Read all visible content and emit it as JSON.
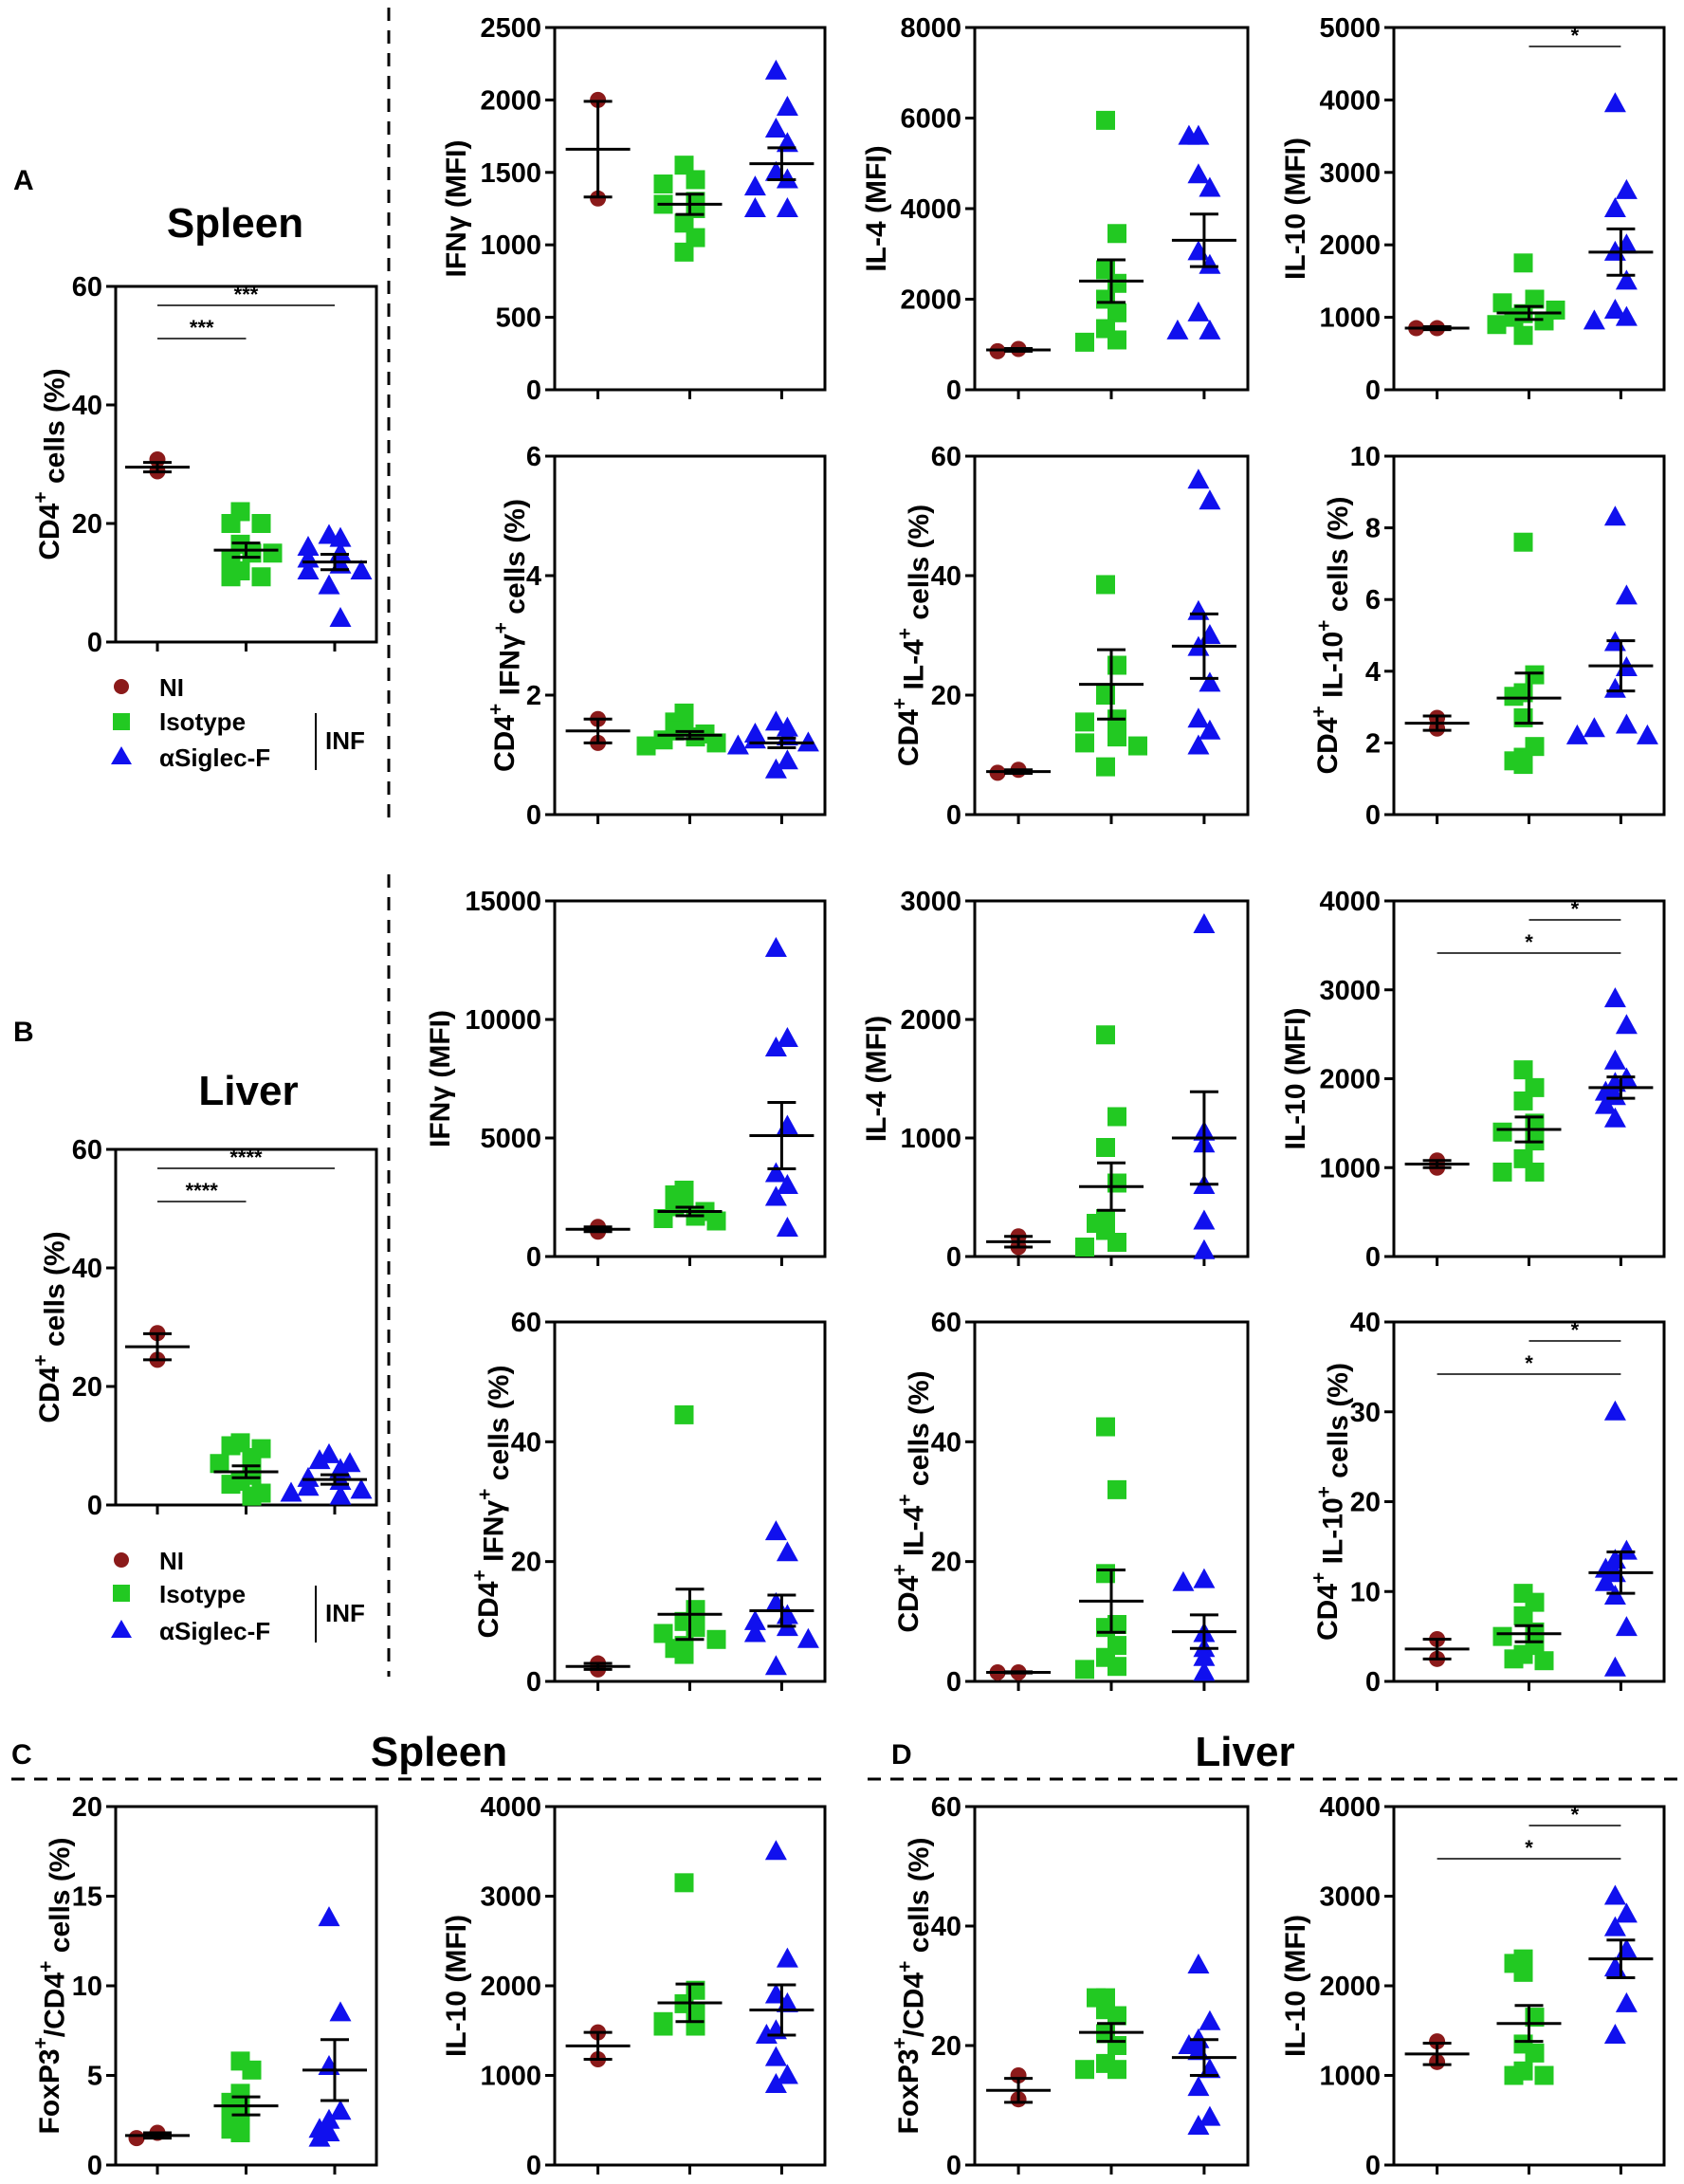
{
  "panel_labels": {
    "a": "A",
    "b": "B",
    "c": "C",
    "d": "D"
  },
  "section_titles": {
    "a": "Spleen",
    "b": "Liver",
    "c": "Spleen",
    "d": "Liver"
  },
  "legend": {
    "ni": "NI",
    "isotype": "Isotype",
    "siglec": "αSiglec-F",
    "group": "INF"
  },
  "colors": {
    "ni": "#8b1a1a",
    "isotype": "#22c922",
    "siglec": "#1010ee",
    "axis": "#000000"
  },
  "chart_data": [
    {
      "id": "a_cd4",
      "type": "scatter",
      "ylabel": "CD4+ cells (%)",
      "ylim": [
        0,
        60
      ],
      "ticks": [
        0,
        20,
        40,
        60
      ],
      "groups": [
        {
          "name": "NI",
          "values": [
            28.8,
            30.8
          ],
          "mean": 29.5,
          "sem": 0.8
        },
        {
          "name": "Isotype",
          "values": [
            22,
            20,
            20,
            15,
            16.5,
            14,
            12,
            11,
            11,
            15
          ],
          "mean": 15.5,
          "sem": 1.2
        },
        {
          "name": "αSiglec-F",
          "values": [
            18,
            17.5,
            16,
            15,
            14,
            13,
            12,
            12,
            9.5,
            4
          ],
          "mean": 13.5,
          "sem": 1.3
        }
      ],
      "sig": [
        {
          "from": 0,
          "to": 1,
          "text": "***"
        },
        {
          "from": 0,
          "to": 2,
          "text": "***"
        }
      ]
    },
    {
      "id": "a_ifn_mfi",
      "type": "scatter",
      "ylabel": "IFNγ (MFI)",
      "ylim": [
        0,
        2500
      ],
      "ticks": [
        0,
        500,
        1000,
        1500,
        2000,
        2500
      ],
      "groups": [
        {
          "name": "NI",
          "values": [
            2000,
            1320
          ],
          "mean": 1660,
          "sem": 330
        },
        {
          "name": "Isotype",
          "values": [
            1550,
            1450,
            1420,
            1300,
            1280,
            1250,
            1150,
            1050,
            950
          ],
          "mean": 1280,
          "sem": 70
        },
        {
          "name": "αSiglec-F",
          "values": [
            2200,
            1950,
            1800,
            1700,
            1500,
            1450,
            1400,
            1250,
            1250
          ],
          "mean": 1560,
          "sem": 110
        }
      ],
      "sig": []
    },
    {
      "id": "a_il4_mfi",
      "type": "scatter",
      "ylabel": "IL-4 (MFI)",
      "ylim": [
        0,
        8000
      ],
      "ticks": [
        0,
        2000,
        4000,
        6000,
        8000
      ],
      "groups": [
        {
          "name": "NI",
          "values": [
            900,
            850
          ],
          "mean": 880,
          "sem": 30
        },
        {
          "name": "Isotype",
          "values": [
            5950,
            3450,
            2650,
            2350,
            2000,
            1700,
            1350,
            1100,
            1050
          ],
          "mean": 2400,
          "sem": 470
        },
        {
          "name": "αSiglec-F",
          "values": [
            5600,
            5600,
            4750,
            4450,
            3050,
            2750,
            1700,
            1300,
            1300
          ],
          "mean": 3300,
          "sem": 580
        }
      ],
      "sig": []
    },
    {
      "id": "a_il10_mfi",
      "type": "scatter",
      "ylabel": "IL-10 (MFI)",
      "ylim": [
        0,
        5000
      ],
      "ticks": [
        0,
        1000,
        2000,
        3000,
        4000,
        5000
      ],
      "groups": [
        {
          "name": "NI",
          "values": [
            850,
            850
          ],
          "mean": 850,
          "sem": 20
        },
        {
          "name": "Isotype",
          "values": [
            1750,
            1250,
            1200,
            1100,
            1050,
            1000,
            950,
            900,
            750
          ],
          "mean": 1060,
          "sem": 90
        },
        {
          "name": "αSiglec-F",
          "values": [
            3950,
            2750,
            2500,
            2000,
            1900,
            1500,
            1100,
            1000,
            950
          ],
          "mean": 1900,
          "sem": 320
        }
      ],
      "sig": [
        {
          "from": 1,
          "to": 2,
          "text": "*"
        }
      ]
    },
    {
      "id": "a_ifn_pct",
      "type": "scatter",
      "ylabel": "CD4+ IFNγ+ cells (%)",
      "ylim": [
        0,
        6
      ],
      "ticks": [
        0,
        2,
        4,
        6
      ],
      "groups": [
        {
          "name": "NI",
          "values": [
            1.6,
            1.2
          ],
          "mean": 1.4,
          "sem": 0.2
        },
        {
          "name": "Isotype",
          "values": [
            1.7,
            1.55,
            1.5,
            1.4,
            1.35,
            1.3,
            1.25,
            1.2,
            1.15
          ],
          "mean": 1.33,
          "sem": 0.06
        },
        {
          "name": "αSiglec-F",
          "values": [
            1.55,
            1.45,
            1.35,
            1.3,
            1.25,
            1.2,
            1.15,
            0.9,
            0.75
          ],
          "mean": 1.2,
          "sem": 0.08
        }
      ],
      "sig": []
    },
    {
      "id": "a_il4_pct",
      "type": "scatter",
      "ylabel": "CD4+ IL-4+ cells (%)",
      "ylim": [
        0,
        60
      ],
      "ticks": [
        0,
        20,
        40,
        60
      ],
      "groups": [
        {
          "name": "NI",
          "values": [
            7.5,
            7.0
          ],
          "mean": 7.2,
          "sem": 0.3
        },
        {
          "name": "Isotype",
          "values": [
            38.5,
            25,
            20,
            16,
            15.5,
            13,
            12,
            11.5,
            8
          ],
          "mean": 21.8,
          "sem": 5.8
        },
        {
          "name": "αSiglec-F",
          "values": [
            56,
            52.5,
            34,
            30,
            28,
            22,
            16,
            14,
            11.5
          ],
          "mean": 28.2,
          "sem": 5.4
        }
      ],
      "sig": []
    },
    {
      "id": "a_il10_pct",
      "type": "scatter",
      "ylabel": "CD4+ IL-10+ cells (%)",
      "ylim": [
        0,
        10
      ],
      "ticks": [
        0,
        2,
        4,
        6,
        8,
        10
      ],
      "groups": [
        {
          "name": "NI",
          "values": [
            2.7,
            2.4
          ],
          "mean": 2.55,
          "sem": 0.2
        },
        {
          "name": "Isotype",
          "values": [
            7.6,
            3.9,
            3.4,
            3.3,
            2.7,
            1.9,
            1.6,
            1.5,
            1.4
          ],
          "mean": 3.25,
          "sem": 0.7
        },
        {
          "name": "αSiglec-F",
          "values": [
            8.3,
            6.1,
            4.8,
            4.1,
            3.5,
            2.5,
            2.4,
            2.2,
            2.2
          ],
          "mean": 4.15,
          "sem": 0.7
        }
      ],
      "sig": []
    },
    {
      "id": "b_cd4",
      "type": "scatter",
      "ylabel": "CD4+ cells (%)",
      "ylim": [
        0,
        60
      ],
      "ticks": [
        0,
        20,
        40,
        60
      ],
      "groups": [
        {
          "name": "NI",
          "values": [
            29,
            24.5
          ],
          "mean": 26.7,
          "sem": 2.2
        },
        {
          "name": "Isotype",
          "values": [
            10.5,
            10,
            9.5,
            8,
            7,
            5,
            4,
            3.5,
            2,
            1.5
          ],
          "mean": 5.6,
          "sem": 1.0
        },
        {
          "name": "αSiglec-F",
          "values": [
            8.5,
            7.5,
            7,
            6,
            4.5,
            4,
            3,
            2.5,
            2,
            1.5
          ],
          "mean": 4.3,
          "sem": 0.8
        }
      ],
      "sig": [
        {
          "from": 0,
          "to": 1,
          "text": "****"
        },
        {
          "from": 0,
          "to": 2,
          "text": "****"
        }
      ]
    },
    {
      "id": "b_ifn_mfi",
      "type": "scatter",
      "ylabel": "IFNγ (MFI)",
      "ylim": [
        0,
        15000
      ],
      "ticks": [
        0,
        5000,
        10000,
        15000
      ],
      "groups": [
        {
          "name": "NI",
          "values": [
            1250,
            1050
          ],
          "mean": 1150,
          "sem": 100
        },
        {
          "name": "Isotype",
          "values": [
            2800,
            2600,
            2300,
            2100,
            1900,
            1700,
            1600,
            1500
          ],
          "mean": 1900,
          "sem": 180
        },
        {
          "name": "αSiglec-F",
          "values": [
            13000,
            9200,
            8800,
            5500,
            3500,
            3000,
            2500,
            1200
          ],
          "mean": 5100,
          "sem": 1400
        }
      ],
      "sig": []
    },
    {
      "id": "b_il4_mfi",
      "type": "scatter",
      "ylabel": "IL-4 (MFI)",
      "ylim": [
        0,
        3000
      ],
      "ticks": [
        0,
        1000,
        2000,
        3000
      ],
      "groups": [
        {
          "name": "NI",
          "values": [
            170,
            80
          ],
          "mean": 125,
          "sem": 45
        },
        {
          "name": "Isotype",
          "values": [
            1870,
            1180,
            920,
            620,
            320,
            280,
            220,
            120,
            80
          ],
          "mean": 590,
          "sem": 200
        },
        {
          "name": "αSiglec-F",
          "values": [
            2800,
            1050,
            950,
            600,
            300,
            50
          ],
          "mean": 1000,
          "sem": 390
        }
      ],
      "sig": []
    },
    {
      "id": "b_il10_mfi",
      "type": "scatter",
      "ylabel": "IL-10 (MFI)",
      "ylim": [
        0,
        4000
      ],
      "ticks": [
        0,
        1000,
        2000,
        3000,
        4000
      ],
      "groups": [
        {
          "name": "NI",
          "values": [
            1080,
            1000
          ],
          "mean": 1040,
          "sem": 40
        },
        {
          "name": "Isotype",
          "values": [
            2100,
            1900,
            1750,
            1500,
            1400,
            1300,
            1100,
            950,
            950
          ],
          "mean": 1430,
          "sem": 140
        },
        {
          "name": "αSiglec-F",
          "values": [
            2900,
            2600,
            2200,
            2000,
            1950,
            1850,
            1800,
            1700,
            1550
          ],
          "mean": 1900,
          "sem": 120
        }
      ],
      "sig": [
        {
          "from": 0,
          "to": 2,
          "text": "*"
        },
        {
          "from": 1,
          "to": 2,
          "text": "*"
        }
      ]
    },
    {
      "id": "b_ifn_pct",
      "type": "scatter",
      "ylabel": "CD4+ IFNγ+ cells (%)",
      "ylim": [
        0,
        60
      ],
      "ticks": [
        0,
        20,
        40,
        60
      ],
      "groups": [
        {
          "name": "NI",
          "values": [
            3.0,
            2.0
          ],
          "mean": 2.5,
          "sem": 0.5
        },
        {
          "name": "Isotype",
          "values": [
            44.5,
            12,
            10,
            9,
            8,
            7,
            6,
            5.5,
            4.5
          ],
          "mean": 11.2,
          "sem": 4.2
        },
        {
          "name": "αSiglec-F",
          "values": [
            25,
            21.5,
            13,
            11,
            10,
            9,
            8,
            7,
            2.5
          ],
          "mean": 11.8,
          "sem": 2.6
        }
      ],
      "sig": []
    },
    {
      "id": "b_il4_pct",
      "type": "scatter",
      "ylabel": "CD4+ IL-4+ cells (%)",
      "ylim": [
        0,
        60
      ],
      "ticks": [
        0,
        20,
        40,
        60
      ],
      "groups": [
        {
          "name": "NI",
          "values": [
            1.5,
            1.5
          ],
          "mean": 1.5,
          "sem": 0.1
        },
        {
          "name": "Isotype",
          "values": [
            42.5,
            32,
            18,
            9.5,
            9,
            6,
            4,
            2.5,
            2
          ],
          "mean": 13.4,
          "sem": 5.2
        },
        {
          "name": "αSiglec-F",
          "values": [
            17,
            16.5,
            8,
            5.5,
            4,
            1.5
          ],
          "mean": 8.3,
          "sem": 2.8
        }
      ],
      "sig": []
    },
    {
      "id": "b_il10_pct",
      "type": "scatter",
      "ylabel": "CD4+ IL-10+ cells (%)",
      "ylim": [
        0,
        40
      ],
      "ticks": [
        0,
        10,
        20,
        30,
        40
      ],
      "groups": [
        {
          "name": "NI",
          "values": [
            4.7,
            2.5
          ],
          "mean": 3.6,
          "sem": 1.1
        },
        {
          "name": "Isotype",
          "values": [
            9.8,
            8.8,
            7.3,
            5.5,
            5,
            4,
            3,
            2.5,
            2.3
          ],
          "mean": 5.3,
          "sem": 0.9
        },
        {
          "name": "αSiglec-F",
          "values": [
            30,
            14.5,
            13.5,
            12.5,
            12,
            11,
            9.5,
            6,
            1.5
          ],
          "mean": 12.1,
          "sem": 2.3
        }
      ],
      "sig": [
        {
          "from": 0,
          "to": 2,
          "text": "*"
        },
        {
          "from": 1,
          "to": 2,
          "text": "*"
        }
      ]
    },
    {
      "id": "c_foxp3",
      "type": "scatter",
      "ylabel": "FoxP3+/CD4+ cells (%)",
      "ylim": [
        0,
        20
      ],
      "ticks": [
        0,
        5,
        10,
        15,
        20
      ],
      "groups": [
        {
          "name": "NI",
          "values": [
            1.8,
            1.5
          ],
          "mean": 1.65,
          "sem": 0.15
        },
        {
          "name": "Isotype",
          "values": [
            5.8,
            5.3,
            4,
            3.5,
            3,
            2.7,
            2.5,
            2,
            1.8
          ],
          "mean": 3.3,
          "sem": 0.5
        },
        {
          "name": "αSiglec-F",
          "values": [
            13.8,
            8.5,
            5.5,
            3,
            2.5,
            2,
            1.8,
            1.5
          ],
          "mean": 5.3,
          "sem": 1.7
        }
      ],
      "sig": []
    },
    {
      "id": "c_il10_mfi",
      "type": "scatter",
      "ylabel": "IL-10 (MFI)",
      "ylim": [
        0,
        4000
      ],
      "ticks": [
        0,
        1000,
        2000,
        3000,
        4000
      ],
      "groups": [
        {
          "name": "NI",
          "values": [
            1480,
            1180
          ],
          "mean": 1330,
          "sem": 150
        },
        {
          "name": "Isotype",
          "values": [
            3150,
            1950,
            1800,
            1700,
            1600,
            1550,
            1550
          ],
          "mean": 1810,
          "sem": 210
        },
        {
          "name": "αSiglec-F",
          "values": [
            3500,
            2300,
            1900,
            1800,
            1500,
            1450,
            1200,
            1000,
            900
          ],
          "mean": 1730,
          "sem": 280
        }
      ],
      "sig": []
    },
    {
      "id": "d_foxp3",
      "type": "scatter",
      "ylabel": "FoxP3+/CD4+ cells (%)",
      "ylim": [
        0,
        60
      ],
      "ticks": [
        0,
        20,
        40,
        60
      ],
      "groups": [
        {
          "name": "NI",
          "values": [
            15,
            11
          ],
          "mean": 12.5,
          "sem": 2
        },
        {
          "name": "Isotype",
          "values": [
            28,
            28,
            26,
            25,
            22,
            20,
            17,
            16,
            16
          ],
          "mean": 22.2,
          "sem": 1.5
        },
        {
          "name": "αSiglec-F",
          "values": [
            33.5,
            24,
            21,
            20,
            19,
            16,
            13,
            8,
            6.5
          ],
          "mean": 18,
          "sem": 3
        }
      ],
      "sig": []
    },
    {
      "id": "d_il10_mfi",
      "type": "scatter",
      "ylabel": "IL-10 (MFI)",
      "ylim": [
        0,
        4000
      ],
      "ticks": [
        0,
        1000,
        2000,
        3000,
        4000
      ],
      "groups": [
        {
          "name": "NI",
          "values": [
            1380,
            1150
          ],
          "mean": 1240,
          "sem": 120
        },
        {
          "name": "Isotype",
          "values": [
            2300,
            2250,
            2150,
            1650,
            1350,
            1250,
            1050,
            1000,
            1000
          ],
          "mean": 1580,
          "sem": 200
        },
        {
          "name": "αSiglec-F",
          "values": [
            3000,
            2800,
            2650,
            2400,
            2200,
            1800,
            1450
          ],
          "mean": 2300,
          "sem": 210
        }
      ],
      "sig": [
        {
          "from": 0,
          "to": 2,
          "text": "*"
        },
        {
          "from": 1,
          "to": 2,
          "text": "*"
        }
      ]
    }
  ]
}
